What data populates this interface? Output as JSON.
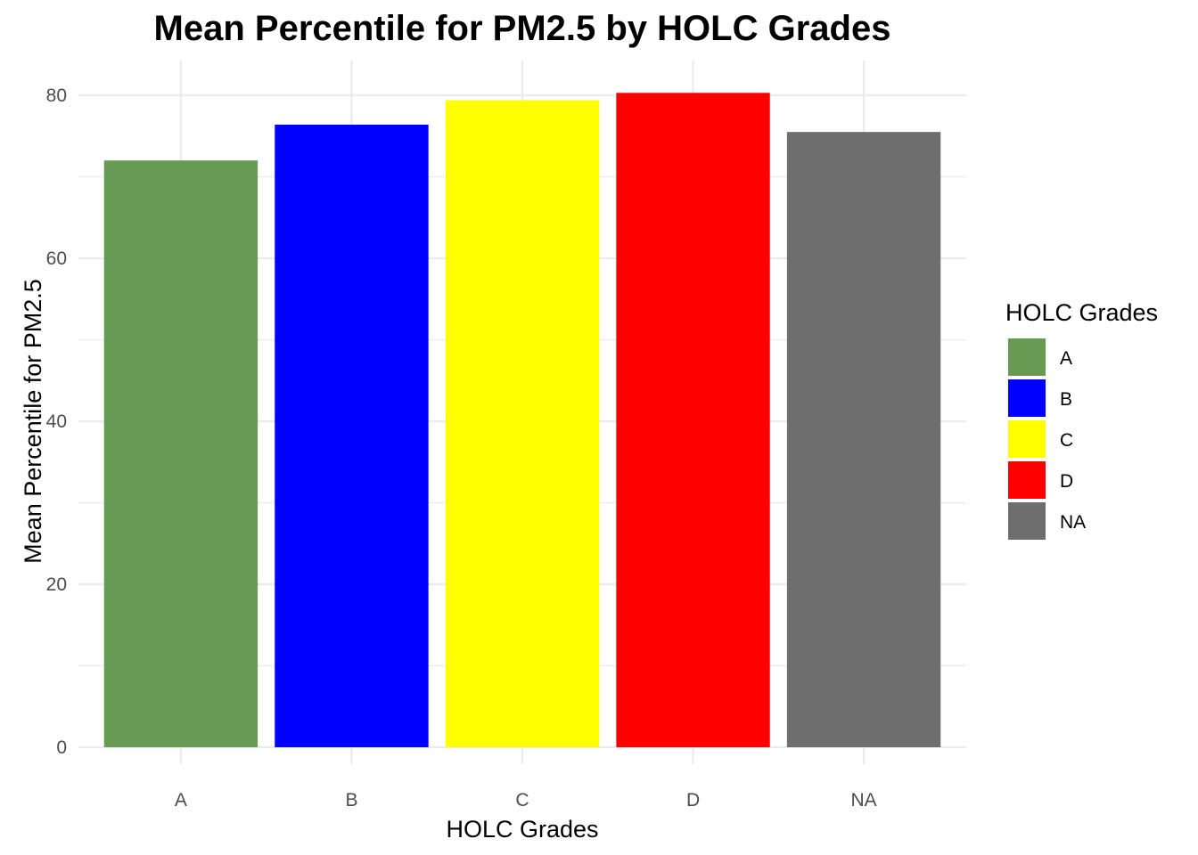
{
  "chart_data": {
    "type": "bar",
    "title": "Mean Percentile for PM2.5 by HOLC Grades",
    "xlabel": "HOLC Grades",
    "ylabel": "Mean Percentile for PM2.5",
    "categories": [
      "A",
      "B",
      "C",
      "D",
      "NA"
    ],
    "values": [
      72.0,
      76.4,
      79.4,
      80.3,
      75.5
    ],
    "colors": [
      "#679b53",
      "#0000ff",
      "#ffff00",
      "#ff0000",
      "#6e6e6e"
    ],
    "ylim": [
      0,
      84
    ],
    "yticks": [
      0,
      20,
      40,
      60,
      80
    ],
    "grid": true,
    "legend": {
      "title": "HOLC Grades",
      "position": "right",
      "items": [
        "A",
        "B",
        "C",
        "D",
        "NA"
      ]
    }
  }
}
